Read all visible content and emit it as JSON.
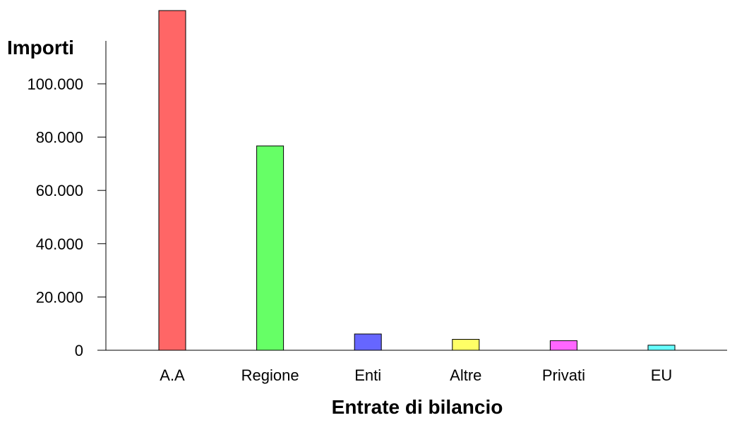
{
  "chart_data": {
    "type": "bar",
    "title": "",
    "xlabel": "Entrate di bilancio",
    "ylabel": "Importi",
    "categories": [
      "A.A",
      "Regione",
      "Enti",
      "Altre",
      "Privati",
      "EU"
    ],
    "values": [
      127500,
      76700,
      6100,
      4100,
      3600,
      1900
    ],
    "ylim": [
      0,
      127500
    ],
    "yticks": [
      0,
      20000,
      40000,
      60000,
      80000,
      100000
    ],
    "ytick_labels": [
      "0",
      "20.000",
      "40.000",
      "60.000",
      "80.000",
      "100.000"
    ],
    "colors": [
      "#ff6666",
      "#66ff66",
      "#6666ff",
      "#ffff66",
      "#ff66ff",
      "#66ffff"
    ],
    "grid": false,
    "legend": "none"
  }
}
